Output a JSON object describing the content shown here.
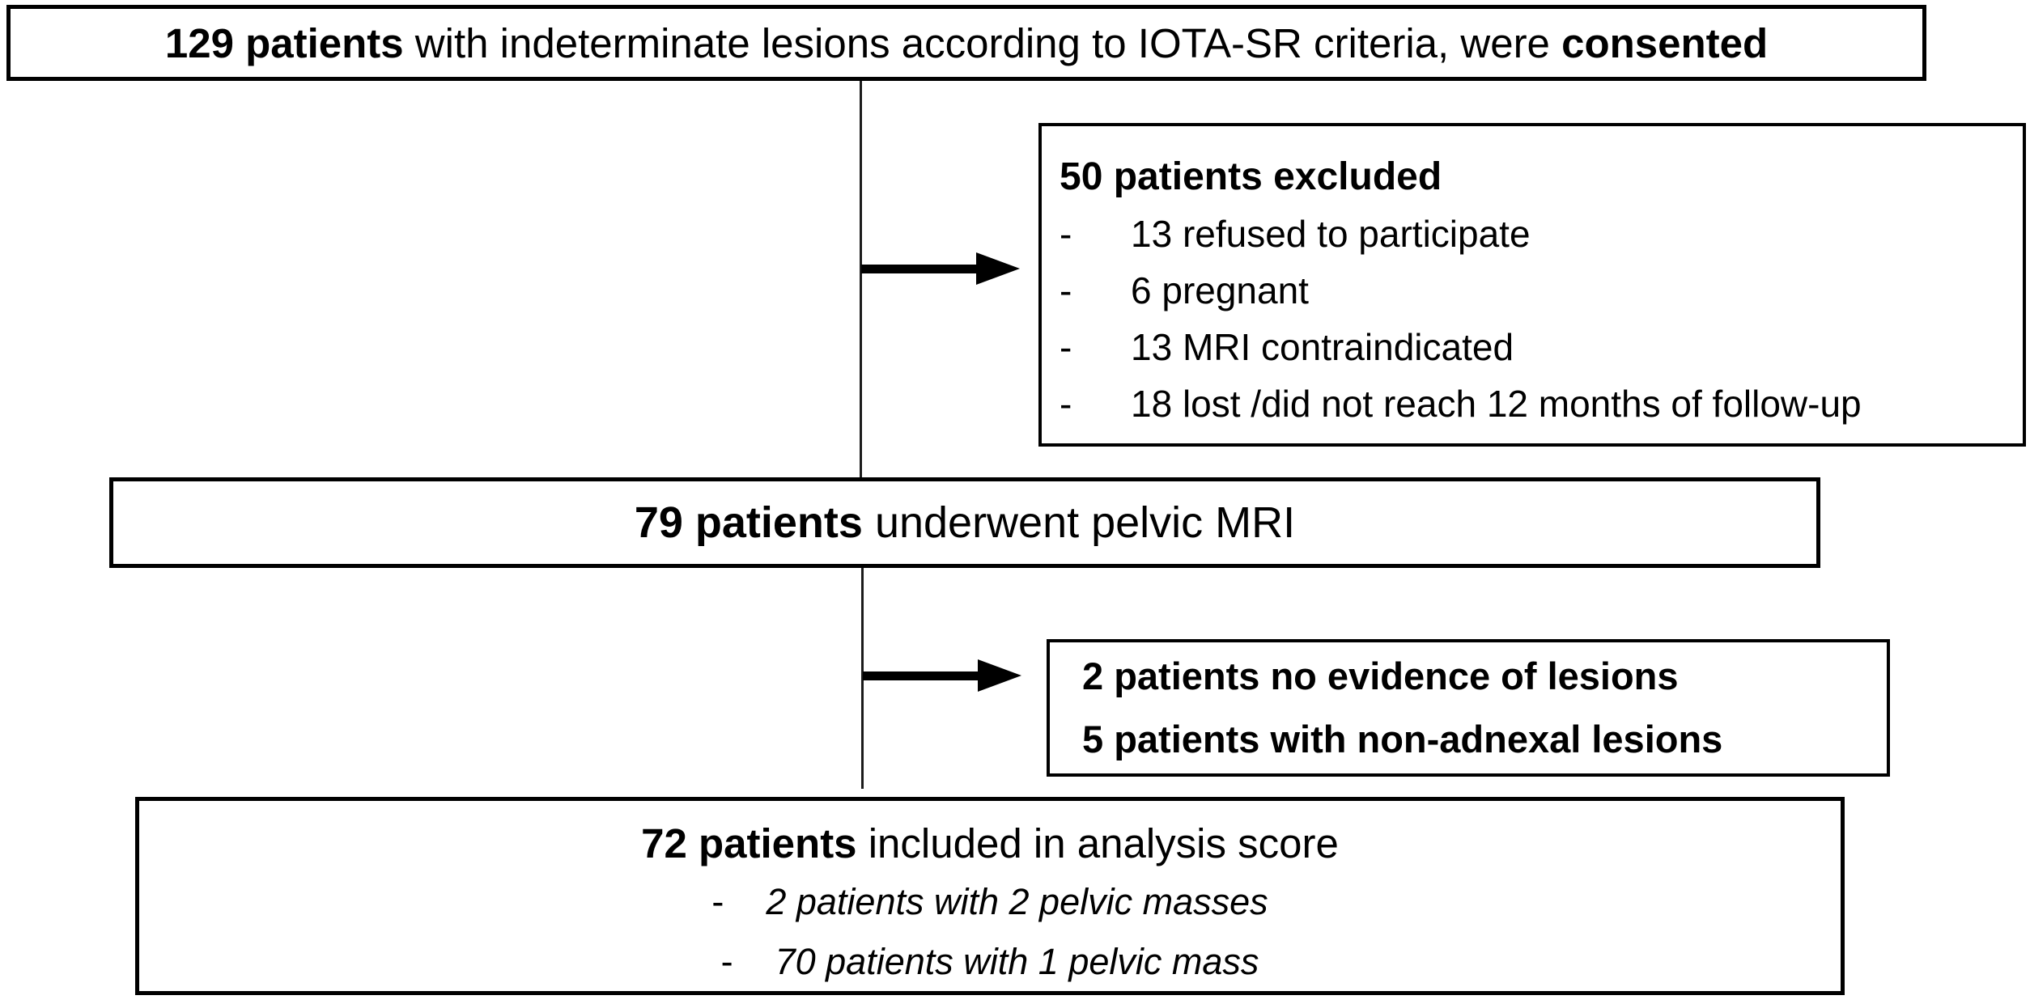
{
  "diagram": {
    "consent_box": {
      "bold_lead": "129 patients",
      "body": " with indeterminate lesions according to IOTA-SR criteria, were ",
      "bold_tail": "consented"
    },
    "excluded_box": {
      "title": "50 patients excluded",
      "dash": "-",
      "items": [
        "13 refused to participate",
        "6 pregnant",
        "13 MRI contraindicated",
        "18 lost /did not reach 12 months of follow-up"
      ]
    },
    "mri_box": {
      "bold_lead": "79 patients",
      "body": " underwent pelvic MRI"
    },
    "non_adnexal_box": {
      "lines": [
        "2 patients no evidence of lesions",
        "5 patients with non-adnexal lesions"
      ]
    },
    "analysis_box": {
      "bold_lead": "72 patients",
      "body": " included in analysis score",
      "dash": "-",
      "items": [
        "2 patients with 2 pelvic masses",
        "70 patients with 1 pelvic mass"
      ]
    }
  }
}
